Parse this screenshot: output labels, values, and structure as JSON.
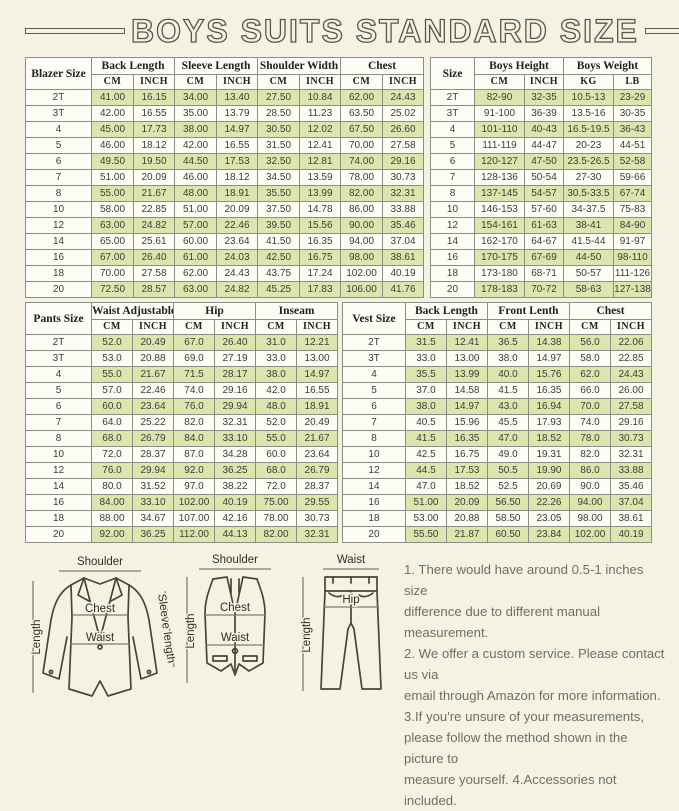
{
  "title": "BOYS SUITS STANDARD SIZE",
  "colors": {
    "background": "#f4f3e3",
    "row_green": "#dbe6af",
    "row_white": "#fdfdf6",
    "border": "#8c8d85",
    "title_outline": "#55564e",
    "notes_text": "#6e6e68"
  },
  "tables": {
    "blazer": {
      "corner": "Blazer Size",
      "groups": [
        {
          "label": "Back Length",
          "subs": [
            "CM",
            "INCH"
          ]
        },
        {
          "label": "Sleeve Length",
          "subs": [
            "CM",
            "INCH"
          ]
        },
        {
          "label": "Shoulder Width",
          "subs": [
            "CM",
            "INCH"
          ]
        },
        {
          "label": "Chest",
          "subs": [
            "CM",
            "INCH"
          ]
        }
      ],
      "rows": [
        [
          "2T",
          "41.00",
          "16.15",
          "34.00",
          "13.40",
          "27.50",
          "10.84",
          "62.00",
          "24.43"
        ],
        [
          "3T",
          "42.00",
          "16.55",
          "35.00",
          "13.79",
          "28.50",
          "11.23",
          "63.50",
          "25.02"
        ],
        [
          "4",
          "45.00",
          "17.73",
          "38.00",
          "14.97",
          "30.50",
          "12.02",
          "67.50",
          "26.60"
        ],
        [
          "5",
          "46.00",
          "18.12",
          "42.00",
          "16.55",
          "31.50",
          "12.41",
          "70.00",
          "27.58"
        ],
        [
          "6",
          "49.50",
          "19.50",
          "44.50",
          "17.53",
          "32.50",
          "12.81",
          "74.00",
          "29.16"
        ],
        [
          "7",
          "51.00",
          "20.09",
          "46.00",
          "18.12",
          "34.50",
          "13.59",
          "78.00",
          "30.73"
        ],
        [
          "8",
          "55.00",
          "21.67",
          "48.00",
          "18.91",
          "35.50",
          "13.99",
          "82.00",
          "32.31"
        ],
        [
          "10",
          "58.00",
          "22.85",
          "51.00",
          "20.09",
          "37.50",
          "14.78",
          "86.00",
          "33.88"
        ],
        [
          "12",
          "63.00",
          "24.82",
          "57.00",
          "22.46",
          "39.50",
          "15.56",
          "90.00",
          "35.46"
        ],
        [
          "14",
          "65.00",
          "25.61",
          "60.00",
          "23.64",
          "41.50",
          "16.35",
          "94.00",
          "37.04"
        ],
        [
          "16",
          "67.00",
          "26.40",
          "61.00",
          "24.03",
          "42.50",
          "16.75",
          "98.00",
          "38.61"
        ],
        [
          "18",
          "70.00",
          "27.58",
          "62.00",
          "24.43",
          "43.75",
          "17.24",
          "102.00",
          "40.19"
        ],
        [
          "20",
          "72.50",
          "28.57",
          "63.00",
          "24.82",
          "45.25",
          "17.83",
          "106.00",
          "41.76"
        ]
      ]
    },
    "body": {
      "corner": "Size",
      "groups": [
        {
          "label": "Boys Height",
          "subs": [
            "CM",
            "INCH"
          ]
        },
        {
          "label": "Boys Weight",
          "subs": [
            "KG",
            "LB"
          ]
        }
      ],
      "rows": [
        [
          "2T",
          "82-90",
          "32-35",
          "10.5-13",
          "23-29"
        ],
        [
          "3T",
          "91-100",
          "36-39",
          "13.5-16",
          "30-35"
        ],
        [
          "4",
          "101-110",
          "40-43",
          "16.5-19.5",
          "36-43"
        ],
        [
          "5",
          "111-119",
          "44-47",
          "20-23",
          "44-51"
        ],
        [
          "6",
          "120-127",
          "47-50",
          "23.5-26.5",
          "52-58"
        ],
        [
          "7",
          "128-136",
          "50-54",
          "27-30",
          "59-66"
        ],
        [
          "8",
          "137-145",
          "54-57",
          "30.5-33.5",
          "67-74"
        ],
        [
          "10",
          "146-153",
          "57-60",
          "34-37.5",
          "75-83"
        ],
        [
          "12",
          "154-161",
          "61-63",
          "38-41",
          "84-90"
        ],
        [
          "14",
          "162-170",
          "64-67",
          "41.5-44",
          "91-97"
        ],
        [
          "16",
          "170-175",
          "67-69",
          "44-50",
          "98-110"
        ],
        [
          "18",
          "173-180",
          "68-71",
          "50-57",
          "111-126"
        ],
        [
          "20",
          "178-183",
          "70-72",
          "58-63",
          "127-138"
        ]
      ]
    },
    "pants": {
      "corner": "Pants Size",
      "groups": [
        {
          "label": "Waist Adjustable",
          "subs": [
            "CM",
            "INCH"
          ]
        },
        {
          "label": "Hip",
          "subs": [
            "CM",
            "INCH"
          ]
        },
        {
          "label": "Inseam",
          "subs": [
            "CM",
            "INCH"
          ]
        }
      ],
      "rows": [
        [
          "2T",
          "52.0",
          "20.49",
          "67.0",
          "26.40",
          "31.0",
          "12.21"
        ],
        [
          "3T",
          "53.0",
          "20.88",
          "69.0",
          "27.19",
          "33.0",
          "13.00"
        ],
        [
          "4",
          "55.0",
          "21.67",
          "71.5",
          "28.17",
          "38.0",
          "14.97"
        ],
        [
          "5",
          "57.0",
          "22.46",
          "74.0",
          "29.16",
          "42.0",
          "16.55"
        ],
        [
          "6",
          "60.0",
          "23.64",
          "76.0",
          "29.94",
          "48.0",
          "18.91"
        ],
        [
          "7",
          "64.0",
          "25.22",
          "82.0",
          "32.31",
          "52.0",
          "20.49"
        ],
        [
          "8",
          "68.0",
          "26.79",
          "84.0",
          "33.10",
          "55.0",
          "21.67"
        ],
        [
          "10",
          "72.0",
          "28.37",
          "87.0",
          "34.28",
          "60.0",
          "23.64"
        ],
        [
          "12",
          "76.0",
          "29.94",
          "92.0",
          "36.25",
          "68.0",
          "26.79"
        ],
        [
          "14",
          "80.0",
          "31.52",
          "97.0",
          "38.22",
          "72.0",
          "28.37"
        ],
        [
          "16",
          "84.00",
          "33.10",
          "102.00",
          "40.19",
          "75.00",
          "29.55"
        ],
        [
          "18",
          "88.00",
          "34.67",
          "107.00",
          "42.16",
          "78.00",
          "30.73"
        ],
        [
          "20",
          "92.00",
          "36.25",
          "112.00",
          "44.13",
          "82.00",
          "32.31"
        ]
      ]
    },
    "vest": {
      "corner": "Vest Size",
      "groups": [
        {
          "label": "Back Length",
          "subs": [
            "CM",
            "INCH"
          ]
        },
        {
          "label": "Front Lenth",
          "subs": [
            "CM",
            "INCH"
          ]
        },
        {
          "label": "Chest",
          "subs": [
            "CM",
            "INCH"
          ]
        }
      ],
      "rows": [
        [
          "2T",
          "31.5",
          "12.41",
          "36.5",
          "14.38",
          "56.0",
          "22.06"
        ],
        [
          "3T",
          "33.0",
          "13.00",
          "38.0",
          "14.97",
          "58.0",
          "22.85"
        ],
        [
          "4",
          "35.5",
          "13.99",
          "40.0",
          "15.76",
          "62.0",
          "24.43"
        ],
        [
          "5",
          "37.0",
          "14.58",
          "41.5",
          "16.35",
          "66.0",
          "26.00"
        ],
        [
          "6",
          "38.0",
          "14.97",
          "43.0",
          "16.94",
          "70.0",
          "27.58"
        ],
        [
          "7",
          "40.5",
          "15.96",
          "45.5",
          "17.93",
          "74.0",
          "29.16"
        ],
        [
          "8",
          "41.5",
          "16.35",
          "47.0",
          "18.52",
          "78.0",
          "30.73"
        ],
        [
          "10",
          "42.5",
          "16.75",
          "49.0",
          "19.31",
          "82.0",
          "32.31"
        ],
        [
          "12",
          "44.5",
          "17.53",
          "50.5",
          "19.90",
          "86.0",
          "33.88"
        ],
        [
          "14",
          "47.0",
          "18.52",
          "52.5",
          "20.69",
          "90.0",
          "35.46"
        ],
        [
          "16",
          "51.00",
          "20.09",
          "56.50",
          "22.26",
          "94.00",
          "37.04"
        ],
        [
          "18",
          "53.00",
          "20.88",
          "58.50",
          "23.05",
          "98.00",
          "38.61"
        ],
        [
          "20",
          "55.50",
          "21.87",
          "60.50",
          "23.84",
          "102.00",
          "40.19"
        ]
      ]
    }
  },
  "diagrams": {
    "jacket": {
      "shoulder": "Shoulder",
      "length": "Length",
      "sleeve_length": "Sleeve length",
      "chest": "Chest",
      "waist": "Waist"
    },
    "vest": {
      "shoulder": "Shoulder",
      "length": "Length",
      "chest": "Chest",
      "waist": "Waist"
    },
    "pants": {
      "waist": "Waist",
      "hip": "Hip",
      "length": "Length"
    }
  },
  "notes": "1. There would have around 0.5-1 inches size\ndifference due to different manual measurement.\n2. We offer a custom service. Please contact us via\nemail through Amazon for more information.\n3.If you're unsure of your measurements,\nplease follow the method shown in the picture to\nmeasure yourself. 4.Accessories not included."
}
